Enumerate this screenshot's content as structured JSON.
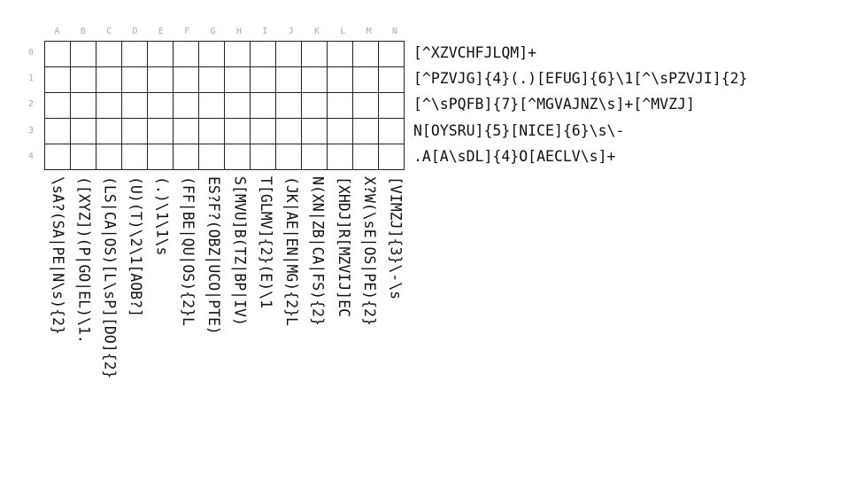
{
  "puzzle": {
    "columns": [
      "A",
      "B",
      "C",
      "D",
      "E",
      "F",
      "G",
      "H",
      "I",
      "J",
      "K",
      "L",
      "M",
      "N"
    ],
    "rows": [
      "0",
      "1",
      "2",
      "3",
      "4"
    ],
    "row_clues": [
      "[^XZVCHFJLQM]+",
      "[^PZVJG]{4}(.)[EFUG]{6}\\1[^\\sPZVJI]{2}",
      "[^\\sPQFB]{7}[^MGVAJNZ\\s]+[^MVZJ]",
      "N[OYSRU]{5}[NICE]{6}\\s\\-",
      ".A[A\\sDL]{4}O[AECLV\\s]+"
    ],
    "column_clues": [
      "\\sA?(SA|PE|N\\s){2}",
      "([XYZ])(P|GO|EL)\\1.",
      "(LS|CA|OS)[L\\sP][DO]{2}",
      "(U)(T)\\2\\1[AOB?]",
      "(.)\\1\\1\\s",
      "(FF|BE|QU|OS){2}L",
      "ES?F?(OBZ|UCO|PTE)",
      "S[MVU]B(TZ|BP|IV)",
      "T[GLMV]{2}(E)\\1",
      "(JK|AE|EN|MG){2}L",
      "N(XN|ZB|CA|FS){2}",
      "[XHDJ]R[MZVIJ]EC",
      "X?W(\\sE|OS|PE){2}",
      "[VIMZJ]{3}\\-\\s"
    ]
  }
}
